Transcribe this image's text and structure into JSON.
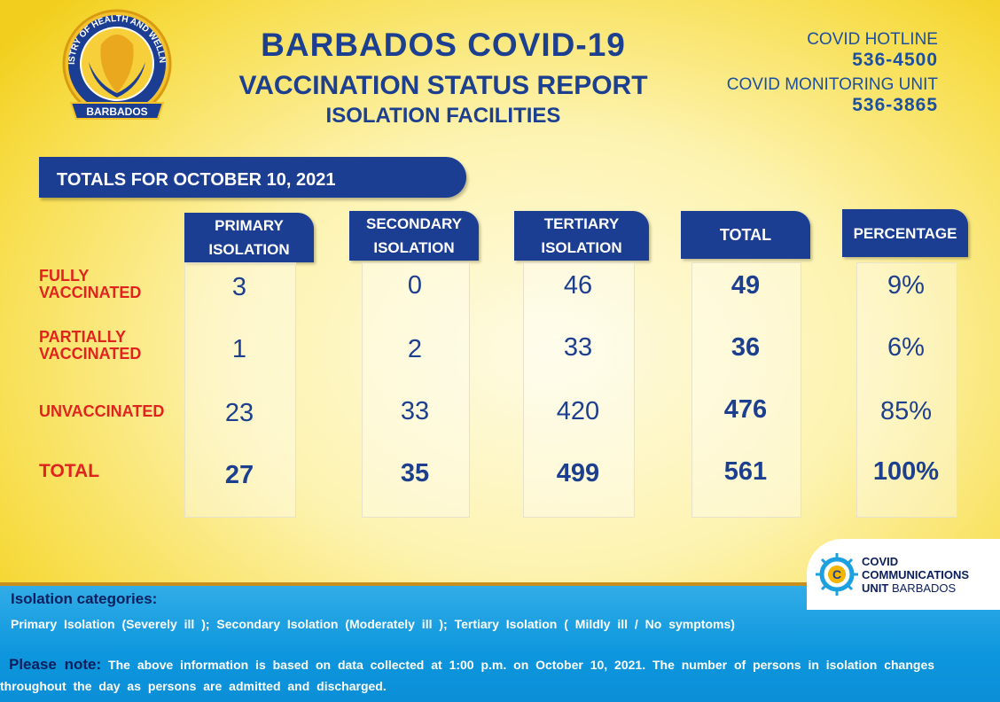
{
  "header": {
    "logo": {
      "ring_text": "MINISTRY OF HEALTH AND WELLNESS",
      "ribbon": "BARBADOS"
    },
    "title_line1": "BARBADOS COVID-19",
    "title_line2": "VACCINATION STATUS REPORT",
    "title_line3": "ISOLATION FACILITIES"
  },
  "contacts": {
    "hotline_label": "COVID HOTLINE",
    "hotline_number": "536-4500",
    "monitoring_label": "COVID MONITORING UNIT",
    "monitoring_number": "536-3865"
  },
  "banner": "TOTALS FOR OCTOBER 10, 2021",
  "table": {
    "columns": [
      "PRIMARY\nISOLATION",
      "SECONDARY\nISOLATION",
      "TERTIARY\nISOLATION",
      "TOTAL",
      "PERCENTAGE"
    ],
    "rows": [
      {
        "label": "FULLY\nVACCINATED",
        "values": [
          "3",
          "0",
          "46",
          "49",
          "9%"
        ]
      },
      {
        "label": "PARTIALLY\nVACCINATED",
        "values": [
          "1",
          "2",
          "33",
          "36",
          "6%"
        ]
      },
      {
        "label": "UNVACCINATED",
        "values": [
          "23",
          "33",
          "420",
          "476",
          "85%"
        ]
      },
      {
        "label": "TOTAL",
        "values": [
          "27",
          "35",
          "499",
          "561",
          "100%"
        ]
      }
    ]
  },
  "footer": {
    "categories_title": "Isolation categories:",
    "categories_text": "Primary Isolation (Severely ill ); Secondary Isolation (Moderately ill ); Tertiary Isolation ( Mildly ill / No symptoms)",
    "note_label": "Please note:",
    "note_text": "The above information is based on data collected at 1:00 p.m. on October 10, 2021. The number of persons in isolation changes throughout the day as persons are admitted and discharged."
  },
  "badge": {
    "line1": "COVID",
    "line2": "COMMUNICATIONS",
    "line3": "UNIT",
    "line3b": "BARBADOS",
    "letter": "C"
  },
  "colors": {
    "navy": "#1b3e93",
    "red": "#e1231f",
    "blue_band": "#0d96dd"
  }
}
